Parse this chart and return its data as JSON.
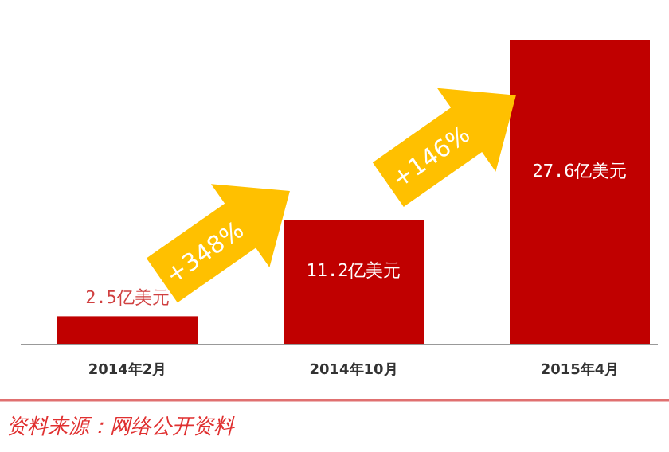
{
  "chart_data": {
    "type": "bar",
    "categories": [
      "2014年2月",
      "2014年10月",
      "2015年4月"
    ],
    "values": [
      2.5,
      11.2,
      27.6
    ],
    "value_labels": [
      "2.5亿美元",
      "11.2亿美元",
      "27.6亿美元"
    ],
    "color": "#c00000",
    "annotations": [
      "+348%",
      "+146%",
      "资料来源：网络公开资料"
    ]
  }
}
